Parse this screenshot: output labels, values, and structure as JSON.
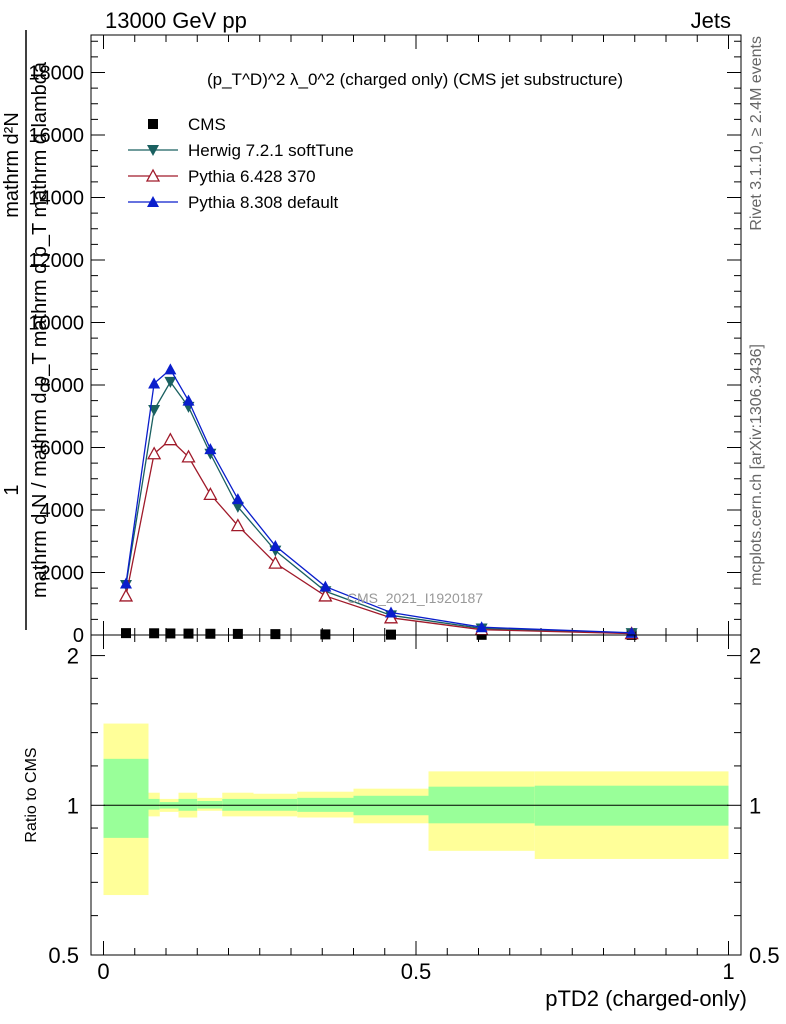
{
  "header": {
    "left": "13000 GeV pp",
    "right": "Jets"
  },
  "side_text": {
    "rivet": "Rivet 3.1.10, ≥ 2.4M events",
    "mcplots": "mcplots.cern.ch [arXiv:1306.3436]"
  },
  "chart_data": [
    {
      "type": "line",
      "title": "(p_T^D)^2 λ_0^2 (charged only) (CMS jet substructure)",
      "watermark": "CMS_2021_I1920187",
      "ylabel_num": "1",
      "ylabel_den": "mathrm d N / mathrm d p_T mathrm d p_T mathrm d lambda",
      "ylabel_num2": "mathrm d²N",
      "ylim": [
        0,
        19200
      ],
      "yticks": [
        0,
        2000,
        4000,
        6000,
        8000,
        10000,
        12000,
        14000,
        16000,
        18000
      ],
      "ytick_labels": [
        "0",
        "2000",
        "4000",
        "6000",
        "8000",
        "10000",
        "12000",
        "14000",
        "16000",
        "18000"
      ],
      "xlim": [
        -0.02,
        1.02
      ],
      "legend_position": "top-left",
      "x": [
        0.036,
        0.081,
        0.107,
        0.136,
        0.171,
        0.215,
        0.275,
        0.355,
        0.46,
        0.605,
        0.845
      ],
      "series": [
        {
          "name": "CMS",
          "color": "#000000",
          "marker": "square",
          "values": [
            60,
            55,
            50,
            45,
            40,
            35,
            28,
            20,
            12,
            6,
            2
          ]
        },
        {
          "name": "Herwig 7.2.1 softTune",
          "color": "#1a6060",
          "marker": "triangle-down",
          "values": [
            1600,
            7200,
            8100,
            7300,
            5800,
            4100,
            2700,
            1400,
            630,
            210,
            60
          ]
        },
        {
          "name": "Pythia 6.428 370",
          "color": "#a01a2a",
          "marker": "triangle-open",
          "values": [
            1250,
            5800,
            6250,
            5700,
            4500,
            3500,
            2300,
            1250,
            550,
            170,
            45
          ]
        },
        {
          "name": "Pythia 8.308 default",
          "color": "#0a1ecc",
          "marker": "triangle-up",
          "values": [
            1650,
            8050,
            8500,
            7500,
            5950,
            4350,
            2850,
            1550,
            720,
            250,
            70
          ]
        }
      ]
    },
    {
      "type": "area",
      "ylabel": "Ratio to CMS",
      "xlabel": "pTD2 (charged-only)",
      "ylim": [
        0.5,
        2.2
      ],
      "yticks": [
        0.5,
        1,
        2
      ],
      "ytick_labels": [
        "0.5",
        "1",
        "2"
      ],
      "xlim": [
        -0.02,
        1.02
      ],
      "xticks": [
        0,
        0.5,
        1
      ],
      "xtick_labels": [
        "0",
        "0.5",
        "1"
      ],
      "reference": 1,
      "bins": [
        {
          "x0": 0.0,
          "x1": 0.072,
          "inner": [
            0.86,
            1.24
          ],
          "outer": [
            0.66,
            1.46
          ]
        },
        {
          "x0": 0.072,
          "x1": 0.09,
          "inner": [
            0.98,
            1.03
          ],
          "outer": [
            0.95,
            1.06
          ]
        },
        {
          "x0": 0.09,
          "x1": 0.12,
          "inner": [
            0.985,
            1.015
          ],
          "outer": [
            0.97,
            1.03
          ]
        },
        {
          "x0": 0.12,
          "x1": 0.15,
          "inner": [
            0.975,
            1.03
          ],
          "outer": [
            0.945,
            1.06
          ]
        },
        {
          "x0": 0.15,
          "x1": 0.19,
          "inner": [
            0.985,
            1.02
          ],
          "outer": [
            0.975,
            1.035
          ]
        },
        {
          "x0": 0.19,
          "x1": 0.24,
          "inner": [
            0.975,
            1.03
          ],
          "outer": [
            0.95,
            1.06
          ]
        },
        {
          "x0": 0.24,
          "x1": 0.31,
          "inner": [
            0.975,
            1.03
          ],
          "outer": [
            0.95,
            1.055
          ]
        },
        {
          "x0": 0.31,
          "x1": 0.4,
          "inner": [
            0.97,
            1.035
          ],
          "outer": [
            0.945,
            1.065
          ]
        },
        {
          "x0": 0.4,
          "x1": 0.52,
          "inner": [
            0.955,
            1.045
          ],
          "outer": [
            0.92,
            1.08
          ]
        },
        {
          "x0": 0.52,
          "x1": 0.69,
          "inner": [
            0.92,
            1.09
          ],
          "outer": [
            0.81,
            1.17
          ]
        },
        {
          "x0": 0.69,
          "x1": 1.0,
          "inner": [
            0.91,
            1.095
          ],
          "outer": [
            0.78,
            1.17
          ]
        }
      ],
      "inner_color": "#99ff99",
      "outer_color": "#ffff99"
    }
  ]
}
